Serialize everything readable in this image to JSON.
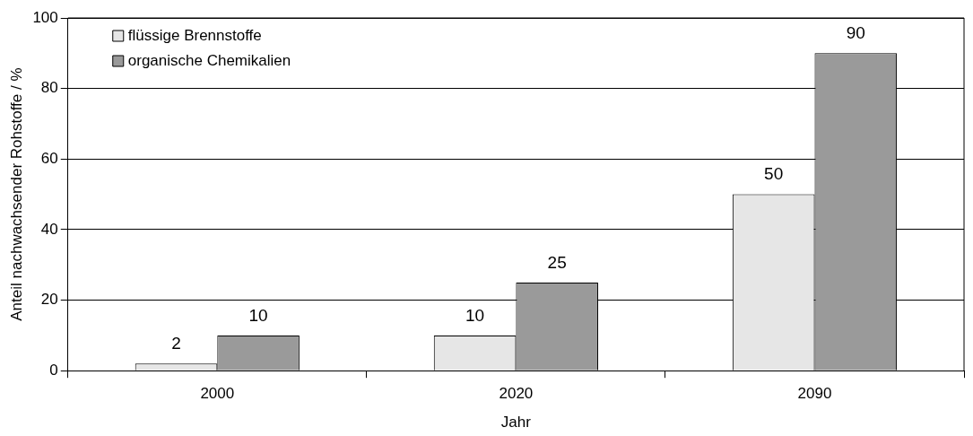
{
  "chart_data": {
    "type": "bar",
    "xlabel": "Jahr",
    "ylabel": "Anteil nachwachsender Rohstoffe / %",
    "categories": [
      "2000",
      "2020",
      "2090"
    ],
    "series": [
      {
        "name": "flüssige Brennstoffe",
        "color": "#e6e6e6",
        "values": [
          2,
          10,
          50
        ]
      },
      {
        "name": "organische Chemikalien",
        "color": "#9a9a9a",
        "values": [
          10,
          25,
          90
        ]
      }
    ],
    "ylim": [
      0,
      100
    ],
    "yticks": [
      0,
      20,
      40,
      60,
      80,
      100
    ],
    "grid": "y",
    "legend": "top left",
    "data_labels": true
  }
}
